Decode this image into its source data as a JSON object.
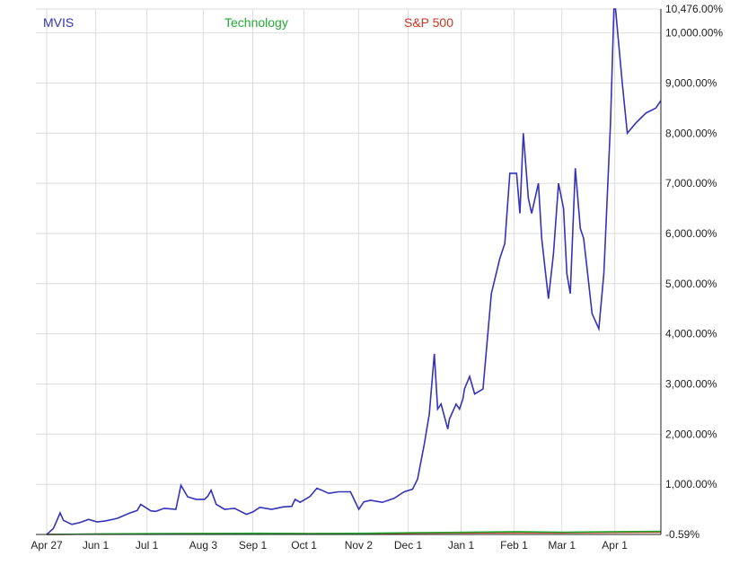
{
  "chart_data": {
    "type": "line",
    "title": "",
    "xlabel": "",
    "ylabel": "",
    "ylim": [
      -0.59,
      10476
    ],
    "grid": true,
    "legend_placement": "top",
    "x_tick_labels": [
      "Apr 27",
      "Jun 1",
      "Jul 1",
      "Aug 3",
      "Sep 1",
      "Oct 1",
      "Nov 2",
      "Dec 1",
      "Jan 1",
      "Feb 1",
      "Mar 1",
      "Apr 1"
    ],
    "y_tick_labels": [
      "10,476.00%",
      "10,000.00%",
      "9,000.00%",
      "8,000.00%",
      "7,000.00%",
      "6,000.00%",
      "5,000.00%",
      "4,000.00%",
      "3,000.00%",
      "2,000.00%",
      "1,000.00%",
      "-0.59%"
    ],
    "y_tick_values": [
      10476,
      10000,
      9000,
      8000,
      7000,
      6000,
      5000,
      4000,
      3000,
      2000,
      1000,
      -0.59
    ],
    "series": [
      {
        "name": "MVIS",
        "color": "#3333bb",
        "x": [
          "Apr 27",
          "May 1",
          "May 5",
          "May 7",
          "May 12",
          "May 17",
          "May 22",
          "May 27",
          "Jun 1",
          "Jun 8",
          "Jun 15",
          "Jun 20",
          "Jun 22",
          "Jun 28",
          "Jul 1",
          "Jul 6",
          "Jul 13",
          "Jul 16",
          "Jul 20",
          "Jul 25",
          "Jul 30",
          "Aug 1",
          "Aug 3",
          "Aug 6",
          "Aug 11",
          "Aug 17",
          "Aug 24",
          "Aug 28",
          "Sep 1",
          "Sep 8",
          "Sep 15",
          "Sep 20",
          "Sep 22",
          "Sep 25",
          "Sep 29",
          "Oct 1",
          "Oct 5",
          "Oct 8",
          "Oct 12",
          "Oct 18",
          "Oct 25",
          "Oct 30",
          "Nov 2",
          "Nov 6",
          "Nov 13",
          "Nov 20",
          "Nov 26",
          "Dec 1",
          "Dec 4",
          "Dec 8",
          "Dec 11",
          "Dec 14",
          "Dec 16",
          "Dec 18",
          "Dec 22",
          "Dec 23",
          "Dec 27",
          "Dec 29",
          "Dec 31",
          "Jan 1",
          "Jan 4",
          "Jan 7",
          "Jan 12",
          "Jan 17",
          "Jan 22",
          "Jan 25",
          "Jan 28",
          "Feb 1",
          "Feb 3",
          "Feb 5",
          "Feb 8",
          "Feb 10",
          "Feb 14",
          "Feb 16",
          "Feb 18",
          "Feb 20",
          "Feb 23",
          "Feb 26",
          "Mar 1",
          "Mar 3",
          "Mar 5",
          "Mar 8",
          "Mar 11",
          "Mar 13",
          "Mar 15",
          "Mar 18",
          "Mar 22",
          "Mar 25",
          "Mar 29",
          "Mar 31",
          "Apr 1",
          "Apr 5",
          "Apr 8",
          "Apr 13",
          "Apr 16",
          "Apr 19",
          "Apr 22",
          "Apr 25",
          "Apr 26",
          "Apr 27",
          "Apr 28"
        ],
        "values": [
          0,
          120,
          430,
          280,
          200,
          240,
          300,
          250,
          270,
          320,
          420,
          480,
          600,
          470,
          460,
          520,
          500,
          980,
          750,
          700,
          700,
          760,
          880,
          600,
          500,
          520,
          400,
          450,
          540,
          500,
          550,
          560,
          700,
          640,
          720,
          760,
          920,
          880,
          820,
          850,
          850,
          500,
          650,
          680,
          640,
          720,
          850,
          900,
          1100,
          1800,
          2400,
          3600,
          2500,
          2600,
          2100,
          2300,
          2600,
          2500,
          2700,
          2900,
          3150,
          2800,
          2900,
          4800,
          5500,
          5800,
          7200,
          7200,
          6400,
          8000,
          6700,
          6400,
          7000,
          5900,
          5300,
          4700,
          5600,
          7000,
          6500,
          5200,
          4800,
          7300,
          6100,
          5900,
          5300,
          4400,
          4100,
          5200,
          8200,
          10476,
          10476,
          9000,
          8000,
          8200,
          8300,
          8400,
          8450,
          8500,
          8550,
          8600,
          8650
        ],
        "note": ""
      },
      {
        "name": "Technology",
        "color": "#22aa33",
        "x": [
          "Apr 27",
          "Jun 1",
          "Jul 1",
          "Aug 3",
          "Sep 1",
          "Oct 1",
          "Nov 2",
          "Dec 1",
          "Jan 1",
          "Feb 1",
          "Mar 1",
          "Apr 1",
          "Apr 28"
        ],
        "values": [
          0,
          10,
          15,
          20,
          22,
          18,
          22,
          35,
          42,
          55,
          45,
          55,
          60
        ]
      },
      {
        "name": "S&P 500",
        "color": "#cc3322",
        "x": [
          "Apr 27",
          "Jun 1",
          "Jul 1",
          "Aug 3",
          "Sep 1",
          "Oct 1",
          "Nov 2",
          "Dec 1",
          "Jan 1",
          "Feb 1",
          "Mar 1",
          "Apr 1",
          "Apr 28"
        ],
        "values": [
          0,
          8,
          12,
          16,
          18,
          15,
          18,
          25,
          30,
          35,
          32,
          40,
          45
        ]
      }
    ]
  }
}
